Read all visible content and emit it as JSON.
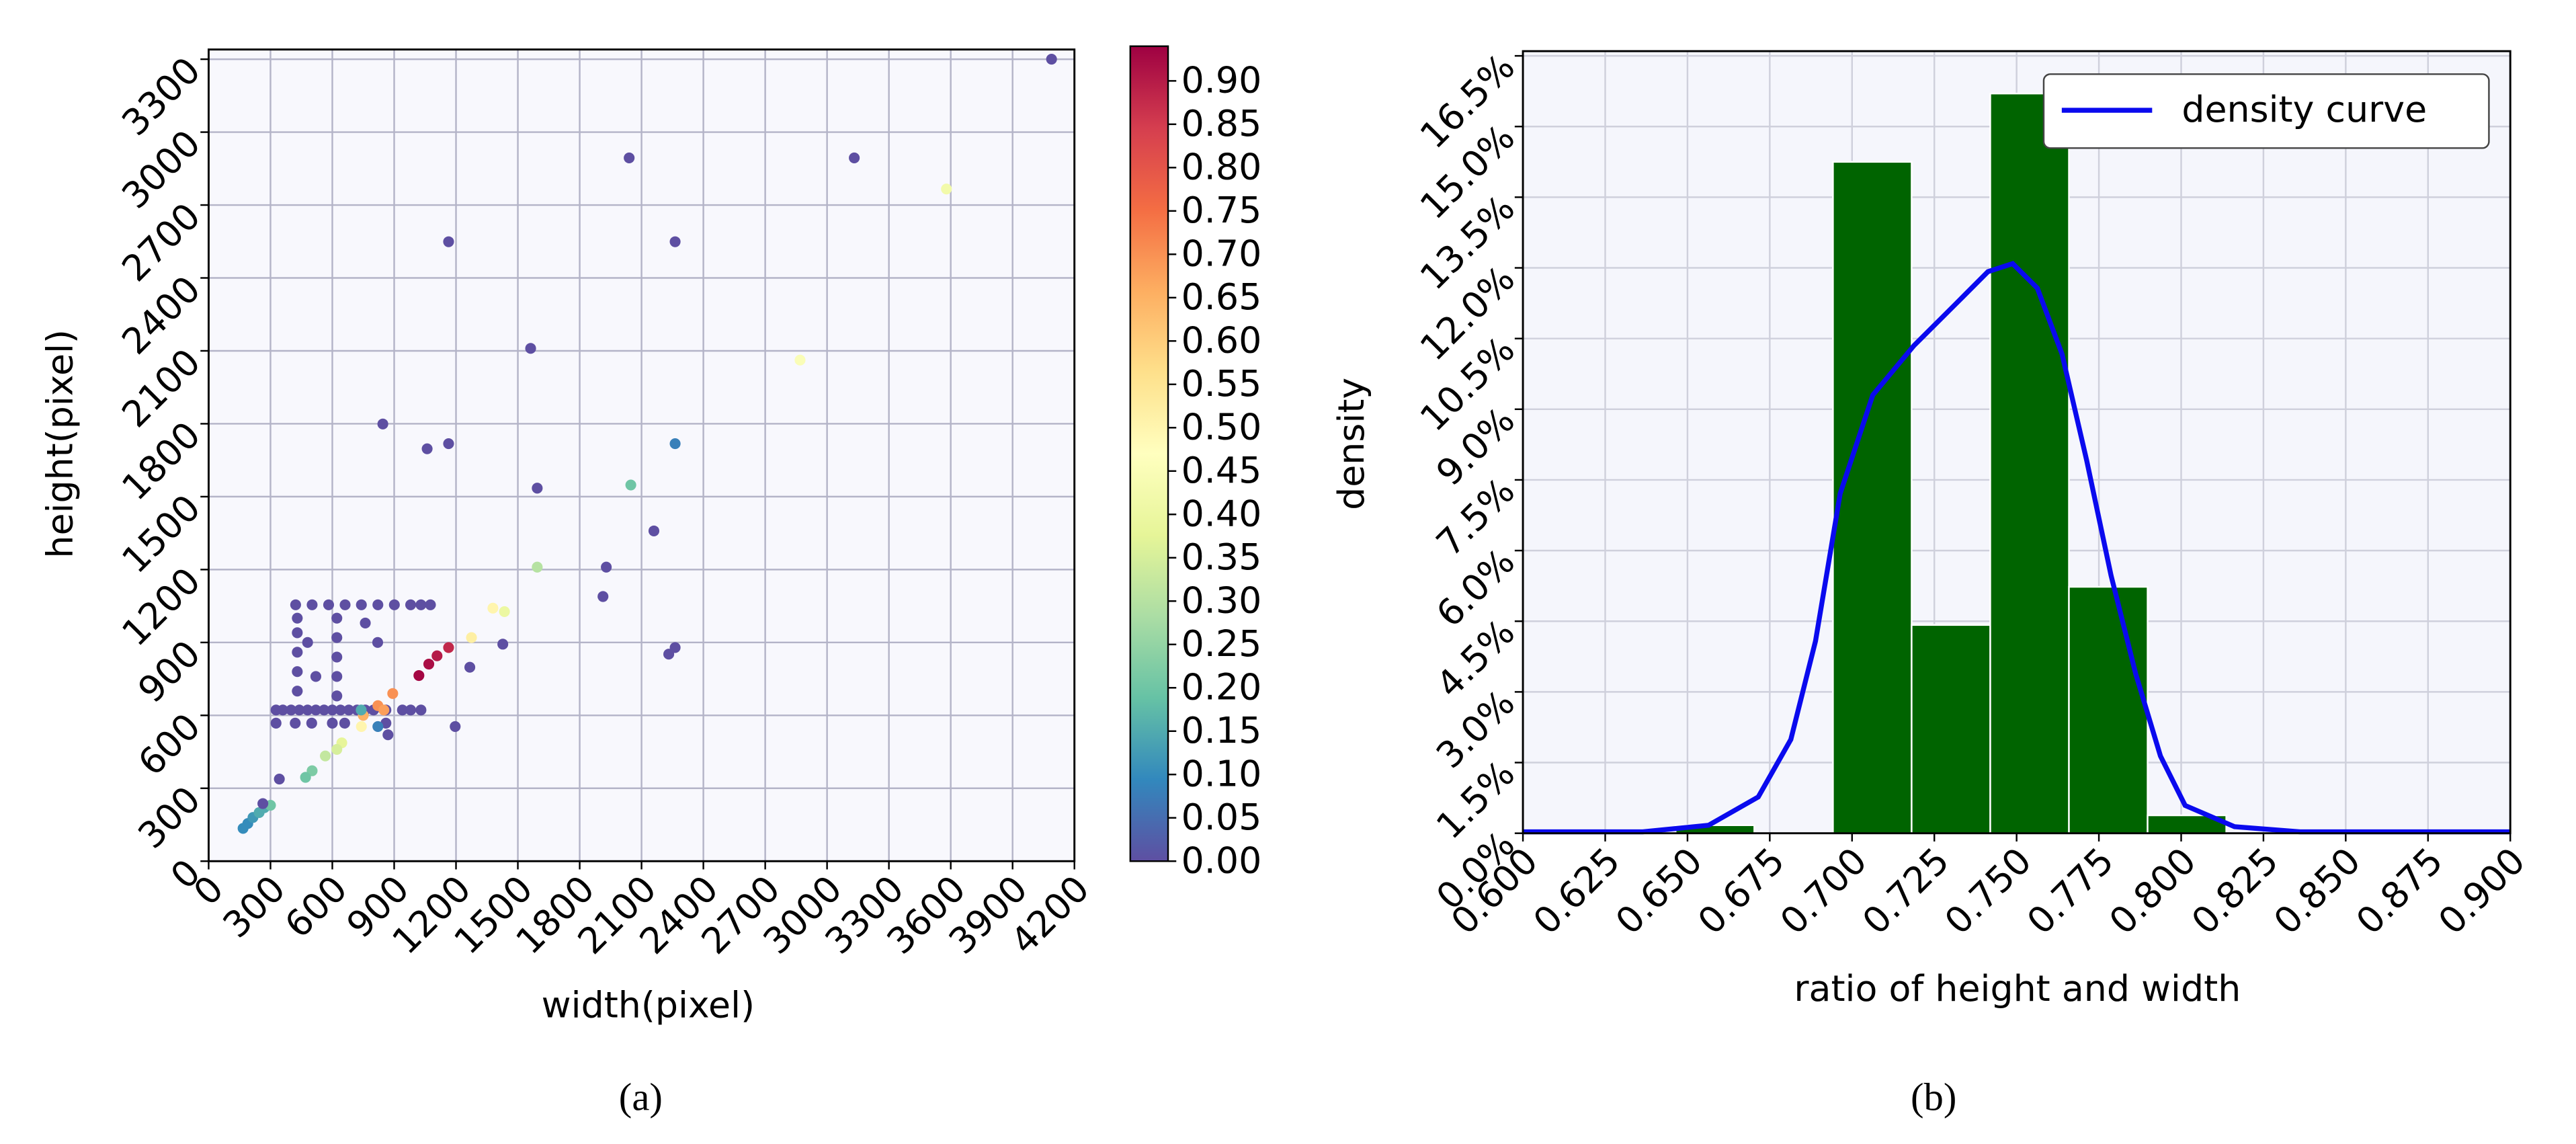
{
  "chart_data": [
    {
      "type": "scatter",
      "caption": "(a)",
      "x_label": "width(pixel)",
      "y_label": "height(pixel)",
      "xlim": [
        0,
        4200
      ],
      "ylim": [
        0,
        3340
      ],
      "xticks": [
        0,
        300,
        600,
        900,
        1200,
        1500,
        1800,
        2100,
        2400,
        2700,
        3000,
        3300,
        3600,
        3900,
        4200
      ],
      "yticks": [
        0,
        300,
        600,
        900,
        1200,
        1500,
        1800,
        2100,
        2400,
        2700,
        3000,
        3300
      ],
      "grid": true,
      "colormap": [
        "#5e4fa2",
        "#3288bd",
        "#66c2a5",
        "#abdda4",
        "#e6f598",
        "#ffffbf",
        "#fee08b",
        "#fdae61",
        "#f46d43",
        "#d53e4f",
        "#9e0142"
      ],
      "clim": [
        0,
        0.94
      ],
      "cticks": [
        {
          "value": 0,
          "label": "0.00"
        },
        {
          "value": 0.05,
          "label": "0.05"
        },
        {
          "value": 0.1,
          "label": "0.10"
        },
        {
          "value": 0.15,
          "label": "0.15"
        },
        {
          "value": 0.2,
          "label": "0.20"
        },
        {
          "value": 0.25,
          "label": "0.25"
        },
        {
          "value": 0.3,
          "label": "0.30"
        },
        {
          "value": 0.35,
          "label": "0.35"
        },
        {
          "value": 0.4,
          "label": "0.40"
        },
        {
          "value": 0.45,
          "label": "0.45"
        },
        {
          "value": 0.5,
          "label": "0.50"
        },
        {
          "value": 0.55,
          "label": "0.55"
        },
        {
          "value": 0.6,
          "label": "0.60"
        },
        {
          "value": 0.65,
          "label": "0.65"
        },
        {
          "value": 0.7,
          "label": "0.70"
        },
        {
          "value": 0.75,
          "label": "0.75"
        },
        {
          "value": 0.8,
          "label": "0.80"
        },
        {
          "value": 0.85,
          "label": "0.85"
        },
        {
          "value": 0.9,
          "label": "0.90"
        }
      ],
      "x": [
        4089,
        2040,
        3132,
        3579,
        1164,
        2263,
        2869,
        1562,
        845,
        1060,
        1164,
        2263,
        1594,
        2048,
        2160,
        1594,
        1929,
        1913,
        1379,
        1435,
        1275,
        1427,
        1267,
        1164,
        1108,
        1068,
        1020,
        893,
        940,
        2232,
        2263,
        1196,
        422,
        502,
        582,
        662,
        741,
        821,
        901,
        980,
        1030,
        1076,
        327,
        360,
        400,
        440,
        480,
        520,
        560,
        600,
        640,
        680,
        720,
        760,
        800,
        860,
        980,
        1030,
        430,
        430,
        430,
        430,
        430,
        622,
        622,
        622,
        622,
        622,
        327,
        420,
        500,
        600,
        660,
        860,
        480,
        520,
        760,
        820,
        870,
        750,
        821,
        850,
        821,
        740,
        741,
        646,
        622,
        566,
        502,
        470,
        167,
        190,
        215,
        245,
        270,
        300,
        263,
        343
      ],
      "values": [
        3300,
        2894,
        2894,
        2766,
        2549,
        2549,
        2062,
        2110,
        1799,
        1697,
        1718,
        1718,
        1535,
        1548,
        1359,
        1210,
        1210,
        1089,
        1041,
        1027,
        920,
        893,
        798,
        879,
        845,
        811,
        764,
        690,
        622,
        852,
        879,
        554,
        1055,
        1055,
        1055,
        1055,
        1055,
        1055,
        1055,
        1055,
        1055,
        1055,
        622,
        622,
        622,
        622,
        622,
        622,
        622,
        622,
        622,
        622,
        622,
        622,
        622,
        622,
        622,
        622,
        700,
        780,
        860,
        940,
        1000,
        680,
        760,
        840,
        920,
        1000,
        568,
        568,
        568,
        568,
        568,
        568,
        900,
        760,
        980,
        900,
        520,
        600,
        640,
        622,
        554,
        622,
        554,
        487,
        460,
        433,
        372,
        345,
        135,
        155,
        180,
        200,
        220,
        230,
        237,
        338
      ],
      "color_values": [
        0,
        0,
        0,
        0.42,
        0,
        0,
        0.45,
        0,
        0,
        0,
        0,
        0.08,
        0,
        0.2,
        0,
        0.3,
        0,
        0,
        0.5,
        0.4,
        0.52,
        0,
        0,
        0.88,
        0.9,
        0.92,
        0.93,
        0.7,
        0,
        0,
        0,
        0,
        0,
        0,
        0,
        0,
        0,
        0,
        0,
        0,
        0,
        0,
        0,
        0,
        0,
        0,
        0,
        0,
        0,
        0,
        0,
        0,
        0,
        0,
        0,
        0,
        0,
        0,
        0,
        0,
        0,
        0,
        0,
        0,
        0,
        0,
        0,
        0,
        0,
        0,
        0,
        0,
        0,
        0,
        0,
        0,
        0,
        0,
        0,
        0.65,
        0.7,
        0.68,
        0.08,
        0.15,
        0.5,
        0.38,
        0.35,
        0.32,
        0.22,
        0.2,
        0.1,
        0.1,
        0.12,
        0.15,
        0.15,
        0.2,
        0,
        0
      ]
    },
    {
      "type": "histogram",
      "caption": "(b)",
      "x_label": "ratio of height and width",
      "y_label": "density",
      "xlim": [
        0.6,
        0.9
      ],
      "ylim": [
        0,
        16.6
      ],
      "xticks": [
        {
          "value": 0.6,
          "label": "0.600"
        },
        {
          "value": 0.625,
          "label": "0.625"
        },
        {
          "value": 0.65,
          "label": "0.650"
        },
        {
          "value": 0.675,
          "label": "0.675"
        },
        {
          "value": 0.7,
          "label": "0.700"
        },
        {
          "value": 0.725,
          "label": "0.725"
        },
        {
          "value": 0.75,
          "label": "0.750"
        },
        {
          "value": 0.775,
          "label": "0.775"
        },
        {
          "value": 0.8,
          "label": "0.800"
        },
        {
          "value": 0.825,
          "label": "0.825"
        },
        {
          "value": 0.85,
          "label": "0.850"
        },
        {
          "value": 0.875,
          "label": "0.875"
        },
        {
          "value": 0.9,
          "label": "0.900"
        }
      ],
      "yticks": [
        {
          "value": 0,
          "label": "0.0%"
        },
        {
          "value": 1.5,
          "label": "1.5%"
        },
        {
          "value": 3,
          "label": "3.0%"
        },
        {
          "value": 4.5,
          "label": "4.5%"
        },
        {
          "value": 6,
          "label": "6.0%"
        },
        {
          "value": 7.5,
          "label": "7.5%"
        },
        {
          "value": 9,
          "label": "9.0%"
        },
        {
          "value": 10.5,
          "label": "10.5%"
        },
        {
          "value": 12,
          "label": "12.0%"
        },
        {
          "value": 13.5,
          "label": "13.5%"
        },
        {
          "value": 15,
          "label": "15.0%"
        },
        {
          "value": 16.5,
          "label": "16.5%"
        }
      ],
      "grid": true,
      "color": "#006400",
      "bins": [
        0.6464,
        0.6703,
        0.6942,
        0.7181,
        0.742,
        0.7659,
        0.7898,
        0.8137
      ],
      "values": [
        0.17,
        0,
        14.25,
        4.42,
        15.7,
        5.23,
        0.38
      ],
      "line": {
        "name": "density curve",
        "color": "#0a0aee",
        "x": [
          0.6,
          0.6364,
          0.6564,
          0.6715,
          0.6814,
          0.6889,
          0.6964,
          0.7063,
          0.7188,
          0.7313,
          0.7413,
          0.7488,
          0.7563,
          0.7638,
          0.7713,
          0.7787,
          0.7862,
          0.7937,
          0.8012,
          0.8162,
          0.8361,
          0.9
        ],
        "values": [
          0.03,
          0.03,
          0.17,
          0.77,
          1.99,
          4.08,
          7.21,
          9.3,
          10.35,
          11.22,
          11.92,
          12.09,
          11.57,
          10.17,
          7.91,
          5.47,
          3.38,
          1.64,
          0.59,
          0.14,
          0.03,
          0.03
        ]
      },
      "legend": "upper right"
    }
  ]
}
